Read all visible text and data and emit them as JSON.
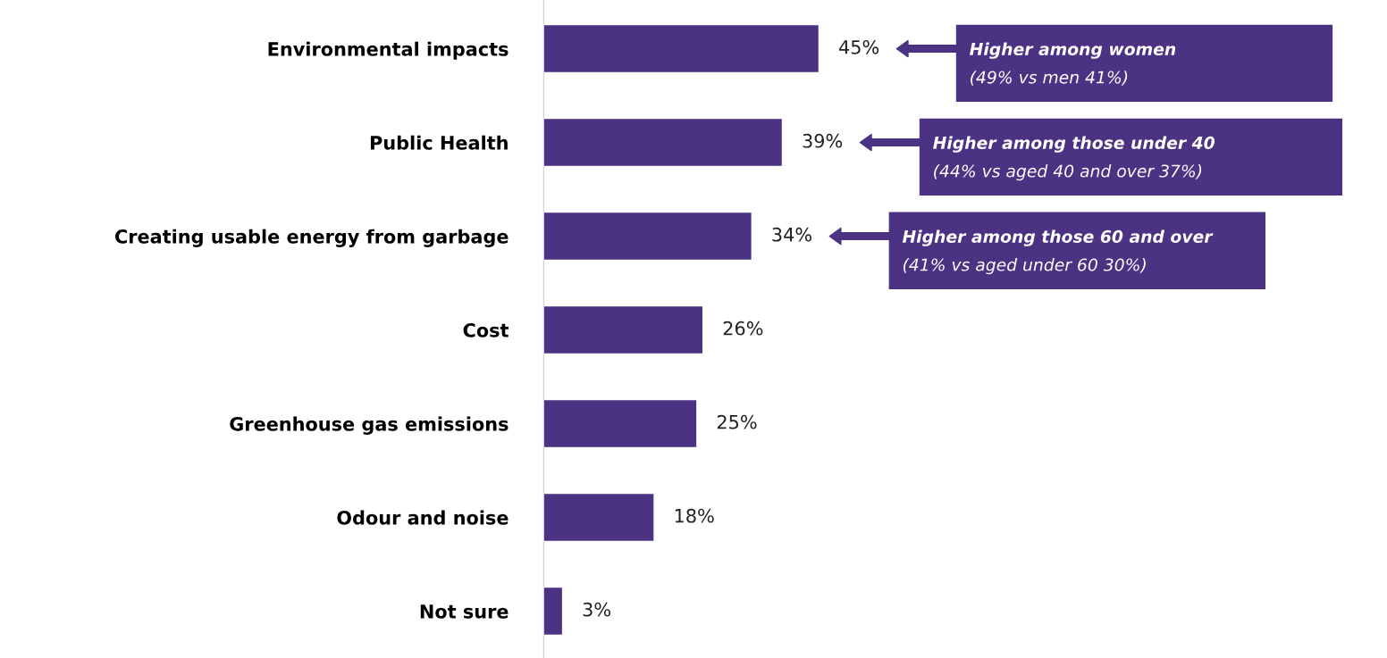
{
  "chart_data": {
    "type": "bar",
    "orientation": "horizontal",
    "categories": [
      "Environmental impacts",
      "Public Health",
      "Creating usable energy from garbage",
      "Cost",
      "Greenhouse gas emissions",
      "Odour and noise",
      "Not sure"
    ],
    "values": [
      45,
      39,
      34,
      26,
      25,
      18,
      3
    ],
    "value_labels": [
      "45%",
      "39%",
      "34%",
      "26%",
      "25%",
      "18%",
      "3%"
    ],
    "color": "#4b3282",
    "annotations": [
      "Higher among women\n(49% vs men 41%)",
      "Higher among those under 40\n(44% vs aged 40 and over 37%)",
      "Higher among those 60 and over\n(41% vs aged under 60 30%)"
    ]
  }
}
